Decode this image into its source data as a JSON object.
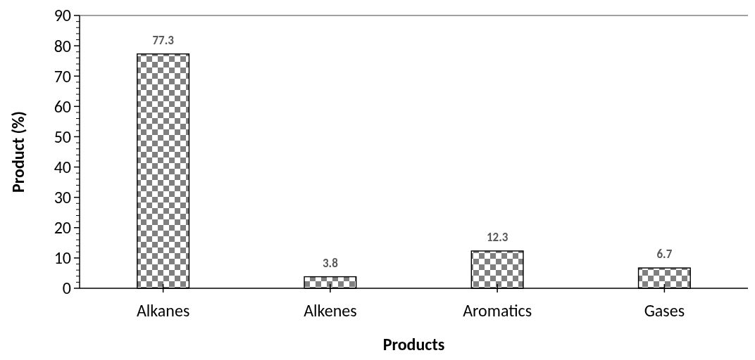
{
  "chart_data": {
    "type": "bar",
    "xlabel": "Products",
    "ylabel": "Product (%)",
    "categories": [
      "Alkanes",
      "Alkenes",
      "Aromatics",
      "Gases"
    ],
    "values": [
      77.3,
      3.8,
      12.3,
      6.7
    ],
    "color": "#808080",
    "ylim": [
      0,
      90
    ],
    "yticks": [
      0,
      10,
      20,
      30,
      40,
      50,
      60,
      70,
      80,
      90
    ],
    "data_labels": true
  }
}
